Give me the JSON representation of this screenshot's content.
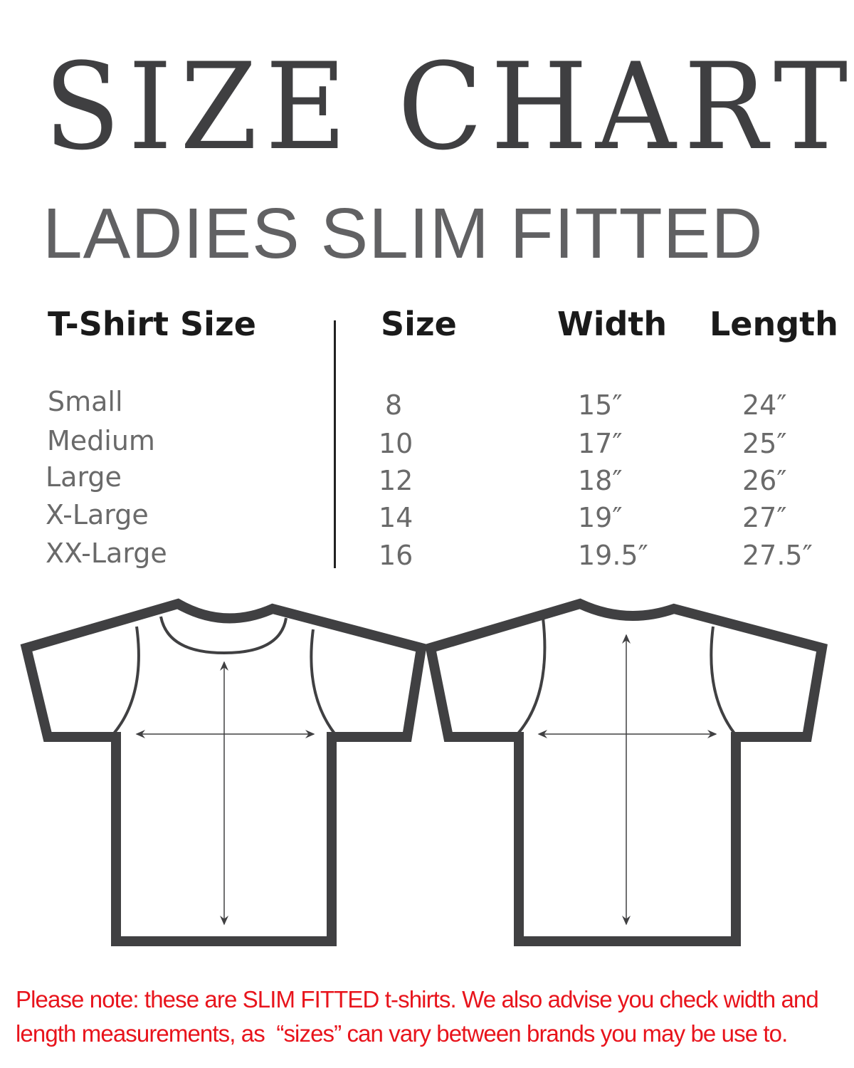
{
  "title": "SIZE CHART",
  "subtitle": "LADIES SLIM FITTED",
  "table": {
    "headers": {
      "tshirt_size": "T-Shirt Size",
      "size": "Size",
      "width": "Width",
      "length": "Length"
    },
    "rows": [
      {
        "name": "Small",
        "size": "8",
        "width": "15″",
        "length": "24″"
      },
      {
        "name": "Medium",
        "size": "10",
        "width": "17″",
        "length": "25″"
      },
      {
        "name": "Large",
        "size": "12",
        "width": "18″",
        "length": "26″"
      },
      {
        "name": "X-Large",
        "size": "14",
        "width": "19″",
        "length": "27″"
      },
      {
        "name": "XX-Large",
        "size": "16",
        "width": "19.5″",
        "length": "27.5″"
      }
    ]
  },
  "diagrams": {
    "front": "tshirt-front-icon",
    "back": "tshirt-back-icon",
    "outline_color": "#404042"
  },
  "note": {
    "line1": "Please note: these are SLIM FITTED t-shirts. We also advise you check width and",
    "line2": "length measurements, as  “sizes” can vary between brands you may be use to.",
    "color": "#e8141c"
  }
}
